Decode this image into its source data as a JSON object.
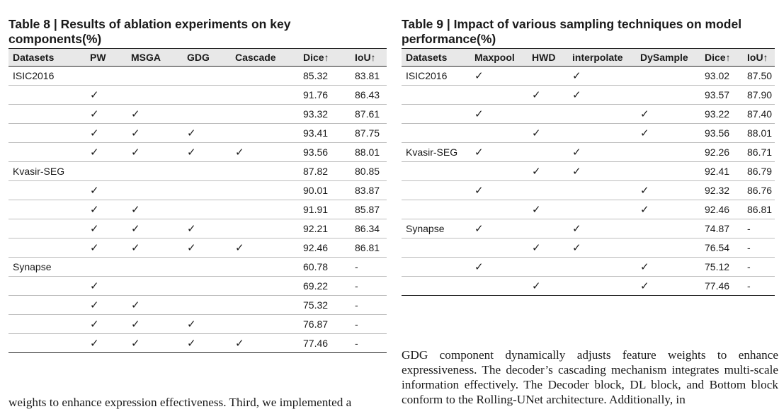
{
  "table8": {
    "caption": "Table 8 | Results of ablation experiments on key components(%)",
    "headers": [
      "Datasets",
      "PW",
      "MSGA",
      "GDG",
      "Cascade",
      "Dice↑",
      "IoU↑"
    ],
    "rows": [
      [
        "ISIC2016",
        "",
        "",
        "",
        "",
        "85.32",
        "83.81"
      ],
      [
        "",
        "✓",
        "",
        "",
        "",
        "91.76",
        "86.43"
      ],
      [
        "",
        "✓",
        "✓",
        "",
        "",
        "93.32",
        "87.61"
      ],
      [
        "",
        "✓",
        "✓",
        "✓",
        "",
        "93.41",
        "87.75"
      ],
      [
        "",
        "✓",
        "✓",
        "✓",
        "✓",
        "93.56",
        "88.01"
      ],
      [
        "Kvasir-SEG",
        "",
        "",
        "",
        "",
        "87.82",
        "80.85"
      ],
      [
        "",
        "✓",
        "",
        "",
        "",
        "90.01",
        "83.87"
      ],
      [
        "",
        "✓",
        "✓",
        "",
        "",
        "91.91",
        "85.87"
      ],
      [
        "",
        "✓",
        "✓",
        "✓",
        "",
        "92.21",
        "86.34"
      ],
      [
        "",
        "✓",
        "✓",
        "✓",
        "✓",
        "92.46",
        "86.81"
      ],
      [
        "Synapse",
        "",
        "",
        "",
        "",
        "60.78",
        "-"
      ],
      [
        "",
        "✓",
        "",
        "",
        "",
        "69.22",
        "-"
      ],
      [
        "",
        "✓",
        "✓",
        "",
        "",
        "75.32",
        "-"
      ],
      [
        "",
        "✓",
        "✓",
        "✓",
        "",
        "76.87",
        "-"
      ],
      [
        "",
        "✓",
        "✓",
        "✓",
        "✓",
        "77.46",
        "-"
      ]
    ]
  },
  "table9": {
    "caption": "Table 9 | Impact of various sampling techniques on model performance(%)",
    "headers": [
      "Datasets",
      "Maxpool",
      "HWD",
      "interpolate",
      "DySample",
      "Dice↑",
      "IoU↑"
    ],
    "rows": [
      [
        "ISIC2016",
        "✓",
        "",
        "✓",
        "",
        "93.02",
        "87.50"
      ],
      [
        "",
        "",
        "✓",
        "✓",
        "",
        "93.57",
        "87.90"
      ],
      [
        "",
        "✓",
        "",
        "",
        "✓",
        "93.22",
        "87.40"
      ],
      [
        "",
        "",
        "✓",
        "",
        "✓",
        "93.56",
        "88.01"
      ],
      [
        "Kvasir-SEG",
        "✓",
        "",
        "✓",
        "",
        "92.26",
        "86.71"
      ],
      [
        "",
        "",
        "✓",
        "✓",
        "",
        "92.41",
        "86.79"
      ],
      [
        "",
        "✓",
        "",
        "",
        "✓",
        "92.32",
        "86.76"
      ],
      [
        "",
        "",
        "✓",
        "",
        "✓",
        "92.46",
        "86.81"
      ],
      [
        "Synapse",
        "✓",
        "",
        "✓",
        "",
        "74.87",
        "-"
      ],
      [
        "",
        "",
        "✓",
        "✓",
        "",
        "76.54",
        "-"
      ],
      [
        "",
        "✓",
        "",
        "",
        "✓",
        "75.12",
        "-"
      ],
      [
        "",
        "",
        "✓",
        "",
        "✓",
        "77.46",
        "-"
      ]
    ]
  },
  "text_left": "weights to enhance expression effectiveness. Third, we implemented a",
  "text_right": "GDG component dynamically adjusts feature weights to enhance expressiveness. The decoder’s cascading mechanism integrates multi-scale information effectively. The Decoder block, DL block, and Bottom block conform to the Rolling-UNet architecture. Additionally, in"
}
